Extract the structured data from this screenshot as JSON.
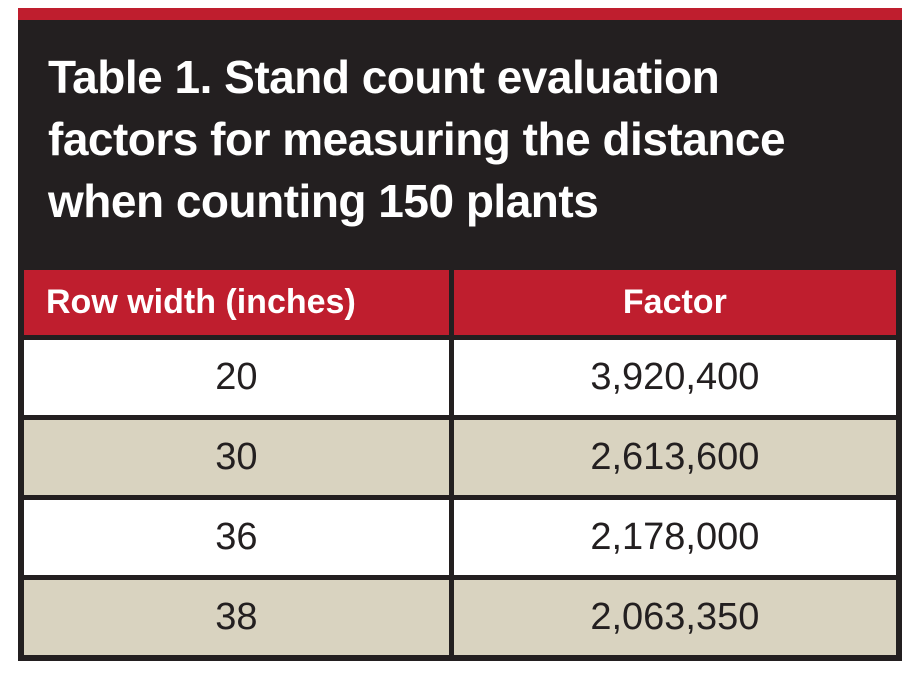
{
  "colors": {
    "accent_red": "#bf1e2e",
    "header_black": "#231f20",
    "row_alt_tan": "#d9d3c0",
    "row_white": "#ffffff"
  },
  "title_lines": {
    "line1": "Table 1. Stand count evaluation",
    "line2": "factors for measuring the distance",
    "line3": "when counting 150 plants"
  },
  "chart_data": {
    "type": "table",
    "title": "Table 1. Stand count evaluation factors for measuring the distance when counting 150 plants",
    "columns": [
      "Row width (inches)",
      "Factor"
    ],
    "rows": [
      [
        "20",
        "3,920,400"
      ],
      [
        "30",
        "2,613,600"
      ],
      [
        "36",
        "2,178,000"
      ],
      [
        "38",
        "2,063,350"
      ]
    ]
  }
}
